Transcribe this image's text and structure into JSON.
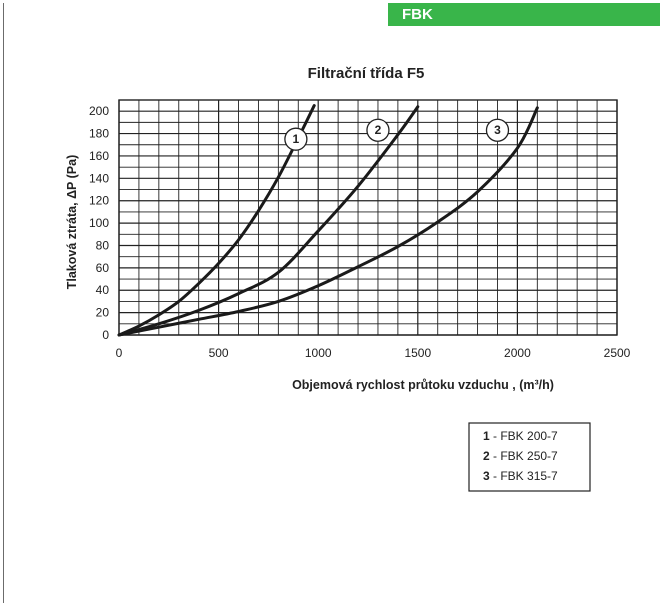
{
  "header": {
    "badge": "FBK"
  },
  "chart_data": {
    "type": "line",
    "title": "Filtrační třída F5",
    "xlabel": "Objemová rychlost průtoku vzduchu , (m³/h)",
    "ylabel": "Tlaková ztráta, ΔP (Pa)",
    "xlim": [
      0,
      2500
    ],
    "ylim": [
      0,
      210
    ],
    "xticks": [
      0,
      500,
      1000,
      1500,
      2000,
      2500
    ],
    "yticks": [
      0,
      20,
      40,
      60,
      80,
      100,
      120,
      140,
      160,
      180,
      200
    ],
    "grid": true,
    "legend_position": "bottom-right",
    "series": [
      {
        "label": "1",
        "name": "FBK 200-7",
        "x": [
          0,
          100,
          200,
          300,
          400,
          500,
          600,
          700,
          800,
          900,
          980
        ],
        "y": [
          0,
          8,
          18,
          30,
          46,
          64,
          85,
          111,
          141,
          176,
          205
        ]
      },
      {
        "label": "2",
        "name": "FBK 250-7",
        "x": [
          0,
          200,
          400,
          600,
          800,
          1000,
          1200,
          1400,
          1500
        ],
        "y": [
          0,
          10,
          22,
          37,
          56,
          93,
          133,
          179,
          204
        ]
      },
      {
        "label": "3",
        "name": "FBK 315-7",
        "x": [
          0,
          200,
          400,
          600,
          800,
          1000,
          1200,
          1400,
          1600,
          1800,
          2000,
          2100
        ],
        "y": [
          0,
          7,
          14,
          21,
          30,
          44,
          61,
          79,
          101,
          128,
          167,
          203
        ]
      }
    ],
    "annotations": [
      "1",
      "2",
      "3"
    ],
    "legend": [
      {
        "num": "1",
        "text": " - FBK 200-7"
      },
      {
        "num": "2",
        "text": " - FBK 250-7"
      },
      {
        "num": "3",
        "text": " - FBK 315-7"
      }
    ],
    "line_color": "#1a1a1a"
  }
}
